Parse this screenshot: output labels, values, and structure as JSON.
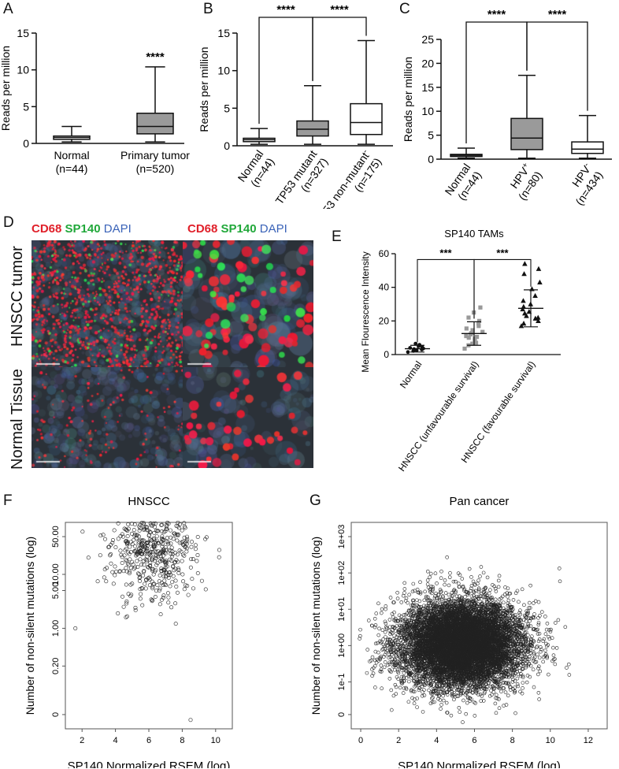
{
  "panels": {
    "A": "A",
    "B": "B",
    "C": "C",
    "D": "D",
    "E": "E",
    "F": "F",
    "G": "G"
  },
  "stain_labels": {
    "cd68": "CD68",
    "sp140": "SP140",
    "dapi": "DAPI"
  },
  "row_labels": {
    "tumor": "HNSCC tumor",
    "normal": "Normal Tissue"
  },
  "colors": {
    "gray_box": "#9a9a9a",
    "white_box": "#ffffff",
    "ink": "#111111",
    "cd68": "#e0202a",
    "sp140": "#21a83a",
    "dapi": "#3a63b8",
    "tissue_bg": "#2b3138"
  },
  "chart_data": [
    {
      "id": "A",
      "type": "box",
      "ylabel": "Reads per million",
      "ylim": [
        0,
        15
      ],
      "yticks": [
        "0",
        "5",
        "10",
        "15"
      ],
      "categories": [
        "Normal\n(n=44)",
        "Primary tumor\n(n=520)"
      ],
      "boxes": [
        {
          "min": 0.2,
          "q1": 0.55,
          "median": 0.8,
          "q3": 1.0,
          "max": 2.3,
          "fill": "white"
        },
        {
          "min": 0.2,
          "q1": 1.3,
          "median": 2.3,
          "q3": 4.1,
          "max": 10.4,
          "fill": "gray"
        }
      ],
      "annotations": [
        {
          "category": 1,
          "text": "****"
        }
      ]
    },
    {
      "id": "B",
      "type": "box",
      "ylabel": "Reads per million",
      "ylim": [
        0,
        15
      ],
      "yticks": [
        "0",
        "5",
        "10",
        "15"
      ],
      "categories": [
        "Normal\n(n=44)",
        "TP53 mutant\n(n=327)",
        "TP53 non-mutant\n(n=175)"
      ],
      "category_superscripts": [
        "",
        "",
        "-"
      ],
      "boxes": [
        {
          "min": 0.2,
          "q1": 0.55,
          "median": 0.8,
          "q3": 1.0,
          "max": 2.3,
          "fill": "white"
        },
        {
          "min": 0.2,
          "q1": 1.3,
          "median": 2.2,
          "q3": 3.3,
          "max": 8.0,
          "fill": "gray"
        },
        {
          "min": 0.2,
          "q1": 1.5,
          "median": 3.1,
          "q3": 5.6,
          "max": 14.0,
          "fill": "white"
        }
      ],
      "brackets": [
        {
          "from": 0,
          "to": 1,
          "text": "****"
        },
        {
          "from": 1,
          "to": 2,
          "text": "****"
        }
      ]
    },
    {
      "id": "C",
      "type": "box",
      "ylabel": "Reads per million",
      "ylim": [
        0,
        25
      ],
      "yticks": [
        "0",
        "5",
        "10",
        "15",
        "20",
        "25"
      ],
      "categories": [
        "Normal\n(n=44)",
        "HPV\n(n=80)",
        "HPV\n(n=434)"
      ],
      "category_superscripts": [
        "",
        "+",
        "-"
      ],
      "boxes": [
        {
          "min": 0.2,
          "q1": 0.55,
          "median": 0.8,
          "q3": 1.0,
          "max": 2.3,
          "fill": "white"
        },
        {
          "min": 0.2,
          "q1": 2.0,
          "median": 4.4,
          "q3": 8.5,
          "max": 17.5,
          "fill": "gray"
        },
        {
          "min": 0.2,
          "q1": 1.2,
          "median": 2.1,
          "q3": 3.6,
          "max": 9.1,
          "fill": "white"
        }
      ],
      "brackets": [
        {
          "from": 0,
          "to": 1,
          "text": "****"
        },
        {
          "from": 1,
          "to": 2,
          "text": "****"
        }
      ]
    },
    {
      "id": "E",
      "type": "scatter",
      "title": "SP140 TAMs",
      "ylabel": "Mean Flourescence Intensity",
      "ylim": [
        0,
        60
      ],
      "yticks": [
        "0",
        "20",
        "40",
        "60"
      ],
      "categories": [
        "Normal",
        "HNSCC (unfavourable survival)",
        "HNSCC (favourable survival)"
      ],
      "groups": [
        {
          "marker": "circle",
          "color": "#111111",
          "mean": 3.5,
          "sd": 2.0,
          "values": [
            1.5,
            2.2,
            2.8,
            3.2,
            3.6,
            4.0,
            4.5,
            5.0,
            5.8,
            6.5,
            3.0,
            2.5
          ]
        },
        {
          "marker": "square",
          "color": "#999999",
          "mean": 12.5,
          "sd": 7.0,
          "values": [
            3.5,
            5.5,
            7.0,
            8.5,
            9.5,
            10.5,
            11.0,
            12.0,
            12.8,
            13.5,
            14.5,
            15.5,
            17.0,
            18.5,
            20.0,
            22.0,
            25.0,
            28.0,
            6.5,
            10.0
          ]
        },
        {
          "marker": "triangle",
          "color": "#111111",
          "mean": 27.5,
          "sd": 11.0,
          "values": [
            17.0,
            18.5,
            20.0,
            21.5,
            23.0,
            24.5,
            25.5,
            27.0,
            28.5,
            30.0,
            32.0,
            35.0,
            39.0,
            43.0,
            48.0,
            51.0,
            54.0,
            22.0
          ]
        }
      ],
      "brackets": [
        {
          "from": 0,
          "to": 1,
          "text": "***"
        },
        {
          "from": 1,
          "to": 2,
          "text": "***"
        }
      ]
    },
    {
      "id": "F",
      "type": "scatter",
      "title": "HNSCC",
      "xlabel": "SP140 Normalized RSEM (log)",
      "ylabel": "Number of non-silent mutations (log)",
      "xlim": [
        1,
        11
      ],
      "xticks": [
        "2",
        "4",
        "6",
        "8",
        "10"
      ],
      "yticks": [
        "0",
        "0.20",
        "1.00",
        "5.00",
        "10.00",
        "50.00"
      ],
      "point_cloud": {
        "n": 520,
        "x_center": 6.3,
        "x_sd": 1.3,
        "y_center_log": 1.45,
        "y_sd_log": 0.5,
        "outliers": [
          [
            1.6,
            1.0
          ],
          [
            8.5,
            0.02
          ],
          [
            8.3,
            45.0
          ]
        ]
      }
    },
    {
      "id": "G",
      "type": "scatter",
      "title": "Pan cancer",
      "xlabel": "SP140 Normalized RSEM (log)",
      "ylabel": "Number of non-silent mutations (log)",
      "xlim": [
        -0.5,
        13
      ],
      "xticks": [
        "0",
        "2",
        "4",
        "6",
        "8",
        "10",
        "12"
      ],
      "yticks": [
        "0",
        "1e-1",
        "1e+00",
        "1e+01",
        "1e+02",
        "1e+03"
      ],
      "point_cloud": {
        "n": 9000,
        "x_center": 5.3,
        "x_sd": 1.6,
        "y_center_log": 0.05,
        "y_sd_log": 0.6
      }
    }
  ]
}
